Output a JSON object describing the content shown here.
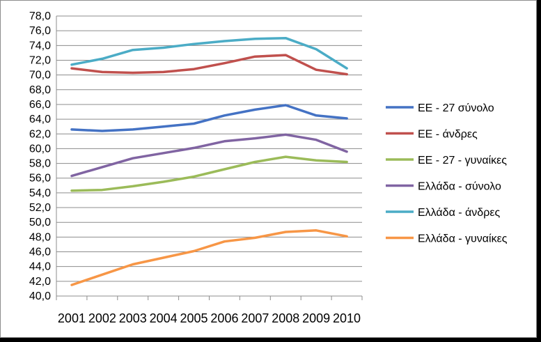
{
  "chart_data": {
    "type": "line",
    "title": "",
    "xlabel": "",
    "ylabel": "",
    "x": [
      "2001",
      "2002",
      "2003",
      "2004",
      "2005",
      "2006",
      "2007",
      "2008",
      "2009",
      "2010"
    ],
    "ylim": [
      40.0,
      78.0
    ],
    "ytick_step": 2.0,
    "yticks": [
      "40,0",
      "42,0",
      "44,0",
      "46,0",
      "48,0",
      "50,0",
      "52,0",
      "54,0",
      "56,0",
      "58,0",
      "60,0",
      "62,0",
      "64,0",
      "66,0",
      "68,0",
      "70,0",
      "72,0",
      "74,0",
      "76,0",
      "78,0"
    ],
    "grid": "horizontal",
    "legend_position": "right",
    "series": [
      {
        "name": "ΕΕ - 27 σύνολο",
        "color": "#4472c4",
        "values": [
          62.6,
          62.4,
          62.6,
          63.0,
          63.4,
          64.5,
          65.3,
          65.9,
          64.5,
          64.1
        ]
      },
      {
        "name": "ΕΕ - άνδρες",
        "color": "#c0504d",
        "values": [
          70.9,
          70.4,
          70.3,
          70.4,
          70.8,
          71.6,
          72.5,
          72.7,
          70.7,
          70.1
        ]
      },
      {
        "name": "ΕΕ - 27 - γυναίκες",
        "color": "#9bbb59",
        "values": [
          54.3,
          54.4,
          54.9,
          55.5,
          56.2,
          57.2,
          58.2,
          58.9,
          58.4,
          58.2
        ]
      },
      {
        "name": "Ελλάδα - σύνολο",
        "color": "#8064a2",
        "values": [
          56.3,
          57.5,
          58.7,
          59.4,
          60.1,
          61.0,
          61.4,
          61.9,
          61.2,
          59.6
        ]
      },
      {
        "name": "Ελλάδα - άνδρες",
        "color": "#4bacc6",
        "values": [
          71.4,
          72.2,
          73.4,
          73.7,
          74.2,
          74.6,
          74.9,
          75.0,
          73.5,
          70.9
        ]
      },
      {
        "name": "Ελλάδα - γυναίκες",
        "color": "#f79646",
        "values": [
          41.5,
          42.9,
          44.3,
          45.2,
          46.1,
          47.4,
          47.9,
          48.7,
          48.9,
          48.1
        ]
      }
    ]
  }
}
